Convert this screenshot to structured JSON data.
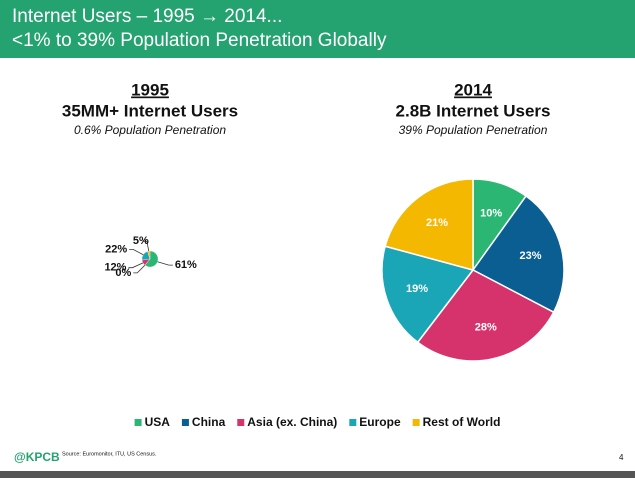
{
  "header": {
    "title": "Internet Users – 1995 → 2014...",
    "subtitle": "<1% to 39% Population Penetration Globally"
  },
  "chart_data": [
    {
      "type": "pie",
      "title": "1995",
      "subtitle": "35MM+ Internet Users",
      "note": "0.6% Population Penetration",
      "categories": [
        "USA",
        "China",
        "Asia (ex. China)",
        "Europe",
        "Rest of World"
      ],
      "values": [
        61,
        0,
        12,
        22,
        5
      ],
      "value_labels": [
        "61%",
        "0%",
        "12%",
        "22%",
        "5%"
      ],
      "colors": [
        "#2bb673",
        "#0a5e91",
        "#d6336c",
        "#1aa6b7",
        "#f5b800"
      ]
    },
    {
      "type": "pie",
      "title": "2014",
      "subtitle": "2.8B Internet Users",
      "note": "39% Population Penetration",
      "categories": [
        "USA",
        "China",
        "Asia (ex. China)",
        "Europe",
        "Rest of World"
      ],
      "values": [
        10,
        23,
        28,
        19,
        21
      ],
      "value_labels": [
        "10%",
        "23%",
        "28%",
        "19%",
        "21%"
      ],
      "colors": [
        "#2bb673",
        "#0a5e91",
        "#d6336c",
        "#1aa6b7",
        "#f5b800"
      ]
    }
  ],
  "footer": {
    "logo": "@KPCB",
    "source": "Source: Euromonitor, ITU, US Census.",
    "page": "4"
  }
}
